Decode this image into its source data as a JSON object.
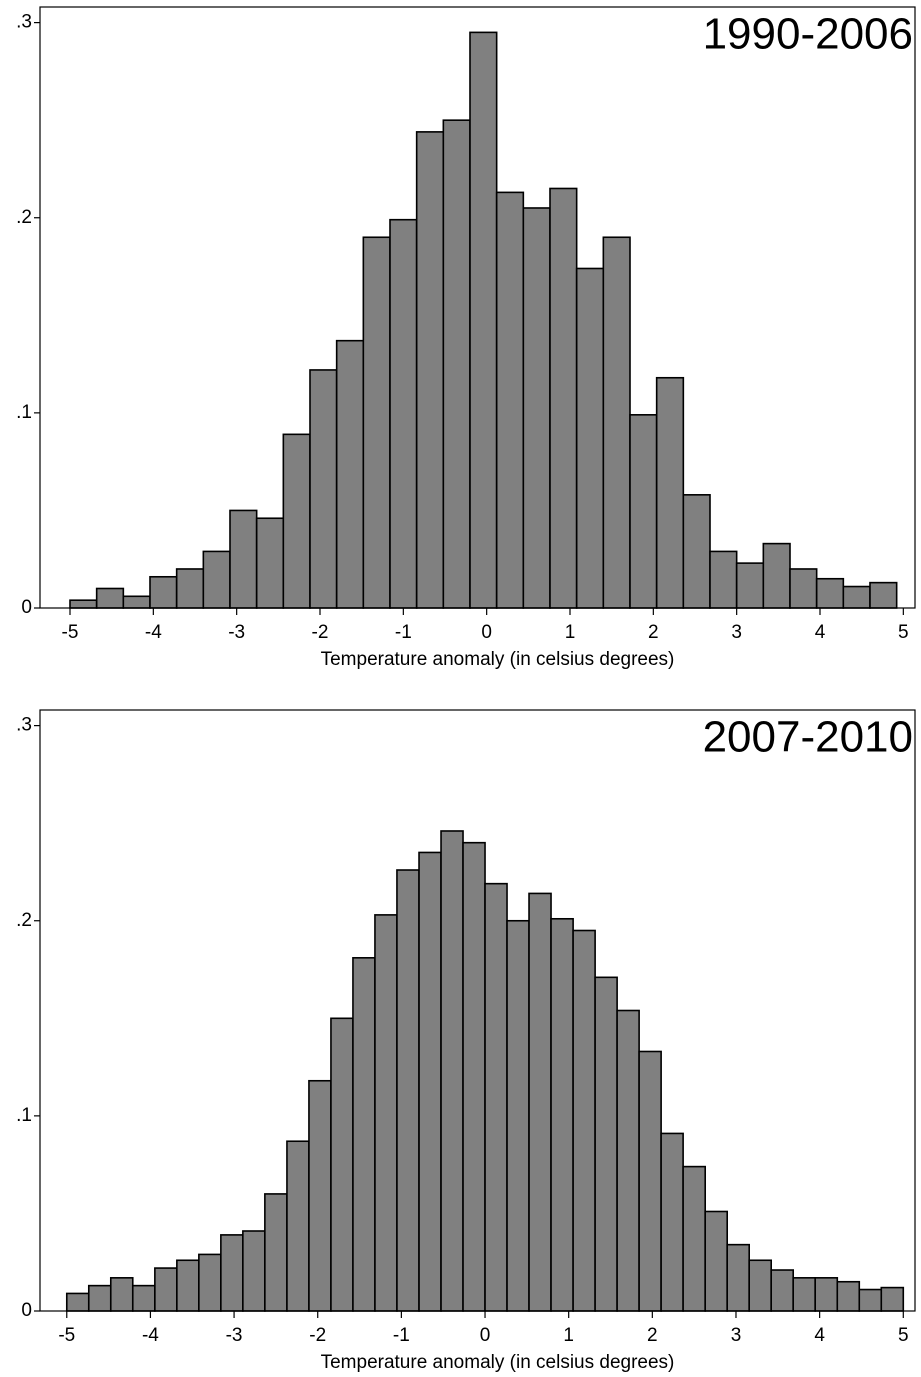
{
  "chart_data": [
    {
      "type": "histogram",
      "title": "1990-2006",
      "x_label": "Temperature anomaly (in celsius degrees)",
      "color": "#808080",
      "bins": [
        -5,
        -4.68,
        -4.36,
        -4.04,
        -3.72,
        -3.4,
        -3.08,
        -2.76,
        -2.44,
        -2.12,
        -1.8,
        -1.48,
        -1.16,
        -0.84,
        -0.52,
        -0.2,
        0.12,
        0.44,
        0.76,
        1.08,
        1.4,
        1.72,
        2.04,
        2.36,
        2.68,
        3,
        3.32,
        3.64,
        3.96,
        4.28,
        4.6,
        4.92
      ],
      "values": [
        0.004,
        0.01,
        0.006,
        0.016,
        0.02,
        0.029,
        0.05,
        0.046,
        0.089,
        0.122,
        0.137,
        0.19,
        0.199,
        0.244,
        0.25,
        0.295,
        0.213,
        0.205,
        0.215,
        0.174,
        0.19,
        0.099,
        0.118,
        0.058,
        0.029,
        0.023,
        0.033,
        0.02,
        0.015,
        0.011,
        0.013
      ],
      "xlim": [
        -5.36,
        5.14
      ],
      "ylim": [
        0,
        0.308
      ],
      "xticks": [
        -5,
        -4,
        -3,
        -2,
        -1,
        0,
        1,
        2,
        3,
        4,
        5
      ],
      "yticks": [
        0,
        {
          "value": 0.1,
          "label": ".1"
        },
        {
          "value": 0.2,
          "label": ".2"
        },
        {
          "value": 0.3,
          "label": ".3"
        }
      ]
    },
    {
      "type": "histogram",
      "title": "2007-2010",
      "x_label": "Temperature anomaly (in celsius degrees)",
      "color": "#808080",
      "bins": [
        -5,
        -4.737,
        -4.474,
        -4.211,
        -3.947,
        -3.684,
        -3.421,
        -3.158,
        -2.895,
        -2.632,
        -2.368,
        -2.105,
        -1.842,
        -1.579,
        -1.316,
        -1.053,
        -0.789,
        -0.526,
        -0.263,
        0,
        0.263,
        0.526,
        0.789,
        1.053,
        1.316,
        1.579,
        1.842,
        2.105,
        2.368,
        2.632,
        2.895,
        3.158,
        3.421,
        3.684,
        3.947,
        4.211,
        4.474,
        4.737,
        5
      ],
      "values": [
        0.009,
        0.013,
        0.017,
        0.013,
        0.022,
        0.026,
        0.029,
        0.039,
        0.041,
        0.06,
        0.087,
        0.118,
        0.15,
        0.181,
        0.203,
        0.226,
        0.235,
        0.246,
        0.24,
        0.219,
        0.2,
        0.214,
        0.201,
        0.195,
        0.171,
        0.154,
        0.133,
        0.091,
        0.074,
        0.051,
        0.034,
        0.026,
        0.021,
        0.017,
        0.017,
        0.015,
        0.011,
        0.012
      ],
      "xlim": [
        -5.32,
        5.14
      ],
      "ylim": [
        0,
        0.308
      ],
      "xticks": [
        -5,
        -4,
        -3,
        -2,
        -1,
        0,
        1,
        2,
        3,
        4,
        5
      ],
      "yticks": [
        0,
        {
          "value": 0.1,
          "label": ".1"
        },
        {
          "value": 0.2,
          "label": ".2"
        },
        {
          "value": 0.3,
          "label": ".3"
        }
      ]
    }
  ]
}
